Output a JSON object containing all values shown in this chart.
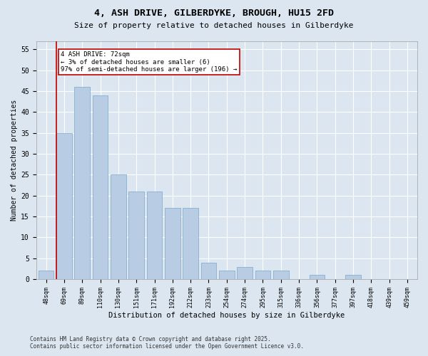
{
  "title1": "4, ASH DRIVE, GILBERDYKE, BROUGH, HU15 2FD",
  "title2": "Size of property relative to detached houses in Gilberdyke",
  "xlabel": "Distribution of detached houses by size in Gilberdyke",
  "ylabel": "Number of detached properties",
  "categories": [
    "48sqm",
    "69sqm",
    "89sqm",
    "110sqm",
    "130sqm",
    "151sqm",
    "171sqm",
    "192sqm",
    "212sqm",
    "233sqm",
    "254sqm",
    "274sqm",
    "295sqm",
    "315sqm",
    "336sqm",
    "356sqm",
    "377sqm",
    "397sqm",
    "418sqm",
    "439sqm",
    "459sqm"
  ],
  "values": [
    2,
    35,
    46,
    44,
    25,
    21,
    21,
    17,
    17,
    4,
    2,
    3,
    2,
    2,
    0,
    1,
    0,
    1,
    0,
    0,
    0
  ],
  "bar_color": "#b8cce4",
  "bar_edge_color": "#7aa6c8",
  "highlight_color": "#c00000",
  "annotation_text": "4 ASH DRIVE: 72sqm\n← 3% of detached houses are smaller (6)\n97% of semi-detached houses are larger (196) →",
  "annotation_box_color": "#ffffff",
  "annotation_box_edge": "#c00000",
  "footer_line1": "Contains HM Land Registry data © Crown copyright and database right 2025.",
  "footer_line2": "Contains public sector information licensed under the Open Government Licence v3.0.",
  "bg_color": "#dce6f1",
  "plot_bg_color": "#dce6f1",
  "ylim": [
    0,
    57
  ],
  "yticks": [
    0,
    5,
    10,
    15,
    20,
    25,
    30,
    35,
    40,
    45,
    50,
    55
  ],
  "title1_fontsize": 9.5,
  "title2_fontsize": 8,
  "xlabel_fontsize": 7.5,
  "ylabel_fontsize": 7,
  "xtick_fontsize": 6,
  "ytick_fontsize": 7,
  "footer_fontsize": 5.5,
  "annot_fontsize": 6.5
}
